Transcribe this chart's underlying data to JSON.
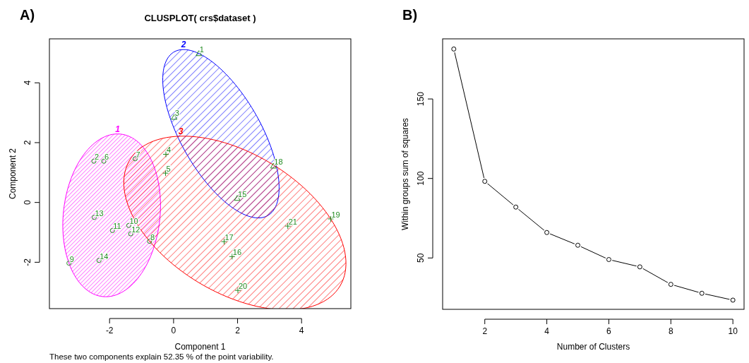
{
  "chart_data": [
    {
      "type": "scatter",
      "title": "CLUSPLOT( crs$dataset )",
      "xlabel": "Component 1",
      "ylabel": "Component 2",
      "xlim": [
        -3.88,
        5.54
      ],
      "ylim": [
        -3.55,
        5.47
      ],
      "xticks": [
        -2,
        0,
        2,
        4
      ],
      "yticks": [
        -2,
        0,
        2,
        4
      ],
      "grid": false,
      "legend": false,
      "series": [
        {
          "color": "#228b22",
          "marker": "circle",
          "x": [
            -2.49,
            -2.18,
            -1.2,
            -2.48,
            -1.91,
            -1.4,
            -1.34,
            -0.75,
            -3.27,
            -2.33
          ],
          "values": [
            1.38,
            1.38,
            1.46,
            -0.5,
            -0.94,
            -0.77,
            -1.05,
            -1.3,
            -2.03,
            -1.94
          ]
        },
        {
          "color": "#228b22",
          "marker": "triangle",
          "x": [
            0.79,
            0.02,
            3.12,
            1.99
          ],
          "values": [
            4.98,
            2.85,
            1.22,
            0.14
          ]
        },
        {
          "color": "#228b22",
          "marker": "cross",
          "x": [
            -0.24,
            -0.25,
            1.58,
            1.83,
            4.91,
            2.01,
            3.57
          ],
          "values": [
            1.61,
            0.98,
            -1.31,
            -1.81,
            -0.55,
            -2.94,
            -0.79
          ]
        }
      ],
      "annotations": [
        "A)",
        "1",
        "2",
        "3",
        {
          "text": "1",
          "x": 0.79,
          "y": 4.98
        },
        {
          "text": "2",
          "x": -2.49,
          "y": 1.38
        },
        {
          "text": "3",
          "x": 0.02,
          "y": 2.85
        },
        {
          "text": "4",
          "x": -0.24,
          "y": 1.61
        },
        {
          "text": "5",
          "x": -0.25,
          "y": 0.98
        },
        {
          "text": "6",
          "x": -2.18,
          "y": 1.38
        },
        {
          "text": "7",
          "x": -1.2,
          "y": 1.46
        },
        {
          "text": "8",
          "x": -0.75,
          "y": -1.3
        },
        {
          "text": "9",
          "x": -3.27,
          "y": -2.03
        },
        {
          "text": "10",
          "x": -1.4,
          "y": -0.77
        },
        {
          "text": "11",
          "x": -1.91,
          "y": -0.94
        },
        {
          "text": "12",
          "x": -1.34,
          "y": -1.05
        },
        {
          "text": "13",
          "x": -2.48,
          "y": -0.5
        },
        {
          "text": "14",
          "x": -2.33,
          "y": -1.94
        },
        {
          "text": "15",
          "x": 1.99,
          "y": 0.14
        },
        {
          "text": "16",
          "x": 1.83,
          "y": -1.81
        },
        {
          "text": "17",
          "x": 1.58,
          "y": -1.31
        },
        {
          "text": "18",
          "x": 3.12,
          "y": 1.22
        },
        {
          "text": "19",
          "x": 4.91,
          "y": -0.55
        },
        {
          "text": "20",
          "x": 2.01,
          "y": -2.94
        },
        {
          "text": "21",
          "x": 3.57,
          "y": -0.79
        },
        "These two components explain 52.35 % of the point variability."
      ]
    },
    {
      "type": "line",
      "xlabel": "Number of Clusters",
      "ylabel": "Within groups sum of squares",
      "xlim": [
        0.64,
        10.36
      ],
      "ylim": [
        17.7,
        187.8
      ],
      "xticks": [
        2,
        4,
        6,
        8,
        10
      ],
      "yticks": [
        50,
        100,
        150
      ],
      "grid": false,
      "legend": false,
      "marker": "circle",
      "line_style": "solid",
      "x": [
        1,
        2,
        3,
        4,
        5,
        6,
        7,
        8,
        9,
        10
      ],
      "series": [
        {
          "color": "#000000",
          "values": [
            181.4,
            98.2,
            82,
            66,
            58,
            49,
            44.4,
            33.4,
            27.8,
            23.5
          ]
        }
      ],
      "annotations": [
        "B)"
      ]
    }
  ]
}
